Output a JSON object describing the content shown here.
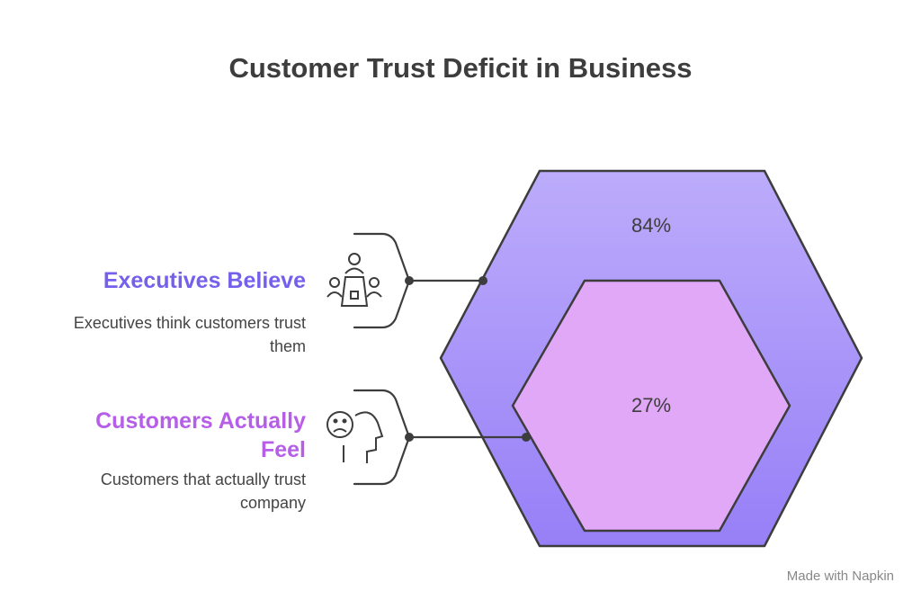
{
  "title": "Customer Trust Deficit in Business",
  "items": [
    {
      "label": "Executives Believe",
      "description": "Executives think customers trust them",
      "value": "84%"
    },
    {
      "label": "Customers Actually Feel",
      "description": "Customers that actually trust company",
      "value": "27%"
    }
  ],
  "footer": "Made with Napkin"
}
